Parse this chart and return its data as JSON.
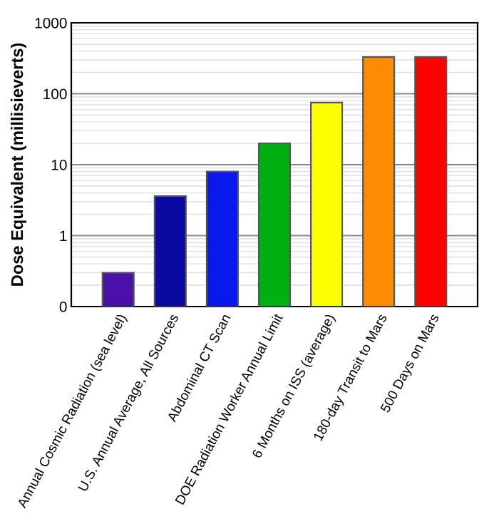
{
  "chart_data": {
    "type": "bar",
    "ylabel": "Dose Equivalent (millisieverts)",
    "categories": [
      "Annual Cosmic Radiation (sea level)",
      "U.S. Annual Average, All Sources",
      "Abdominal CT Scan",
      "DOE Radiation Worker Annual Limit",
      "6 Months on ISS (average)",
      "180-day Transit to Mars",
      "500 Days on Mars"
    ],
    "values": [
      0.3,
      3.6,
      8,
      20,
      75,
      330,
      330
    ],
    "colors": [
      "#4a10a8",
      "#0a0aa0",
      "#0a18f0",
      "#00b010",
      "#ffff00",
      "#ff8c00",
      "#ff0000"
    ],
    "log": "y",
    "ylim": [
      0.1,
      1000
    ],
    "yticks": [
      {
        "value": 0.1,
        "label": "0"
      },
      1,
      10,
      100,
      1000
    ],
    "grid": "y",
    "legend": false
  }
}
